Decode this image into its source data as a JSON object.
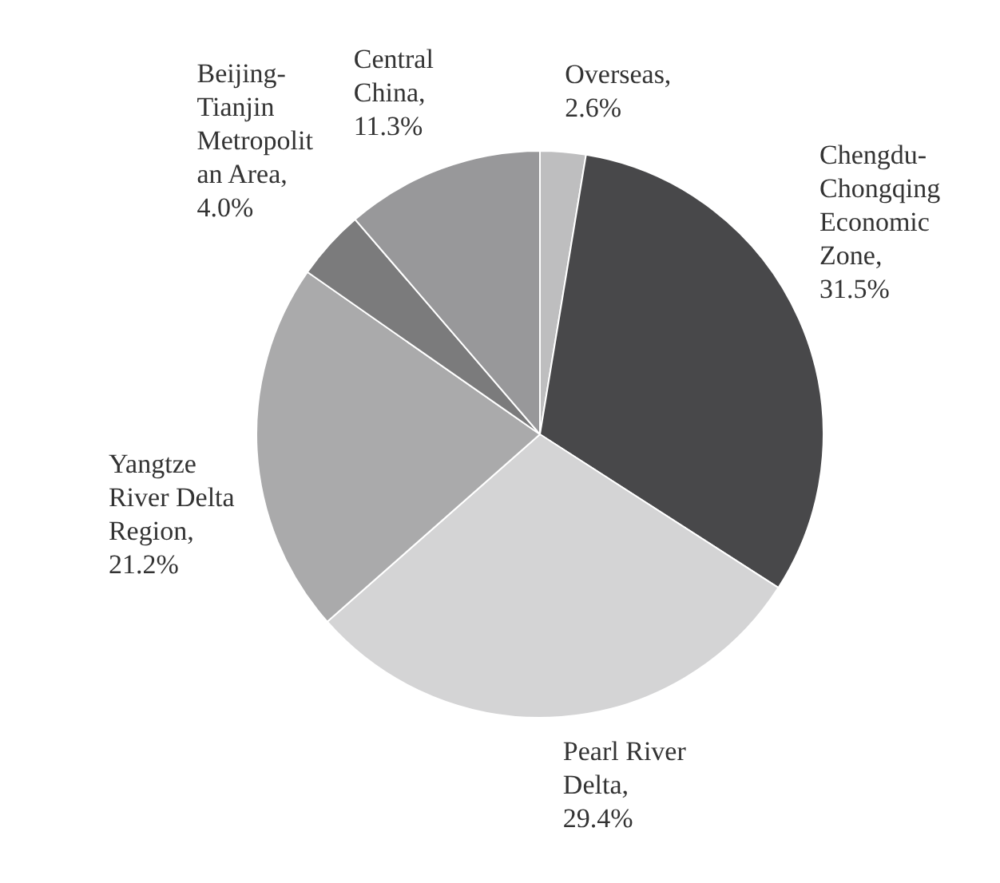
{
  "chart_data": {
    "type": "pie",
    "categories": [
      "Overseas",
      "Chengdu-\nChongqing\nEconomic\nZone",
      "Pearl River\nDelta",
      "Yangtze\nRiver Delta\nRegion",
      "Beijing-\nTianjin\nMetropolit\nan Area",
      "Central\nChina"
    ],
    "values": [
      2.6,
      31.5,
      29.4,
      21.2,
      4.0,
      11.3
    ],
    "value_labels": [
      ",\n2.6%",
      ",\n31.5%",
      ",\n29.4%",
      ",\n21.2%",
      ",\n4.0%",
      ",\n11.3%"
    ],
    "colors": [
      "#bebebf",
      "#48484a",
      "#d4d4d5",
      "#aaaaab",
      "#7b7b7c",
      "#98989a"
    ],
    "legend": false
  }
}
